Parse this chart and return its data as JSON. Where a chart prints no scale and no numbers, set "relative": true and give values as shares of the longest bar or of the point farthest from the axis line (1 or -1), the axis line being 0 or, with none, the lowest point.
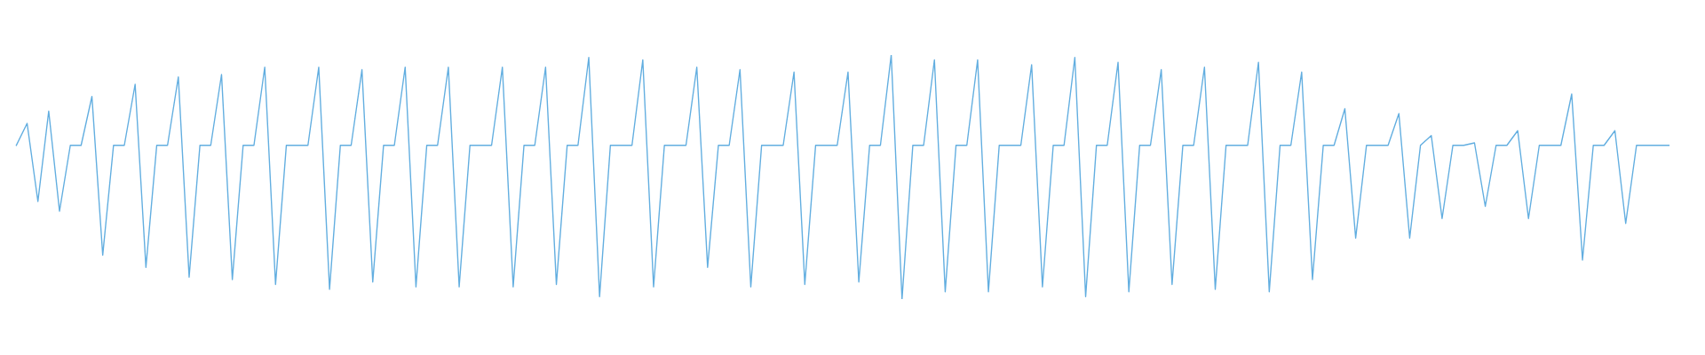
{
  "chart_data": {
    "type": "line",
    "relative": true,
    "color": "#62aee0",
    "categories": [
      null,
      null,
      null,
      null,
      null,
      null,
      null,
      null,
      null,
      null,
      null,
      null,
      null,
      null,
      null,
      null,
      null,
      null,
      null,
      null,
      null,
      null,
      null,
      null,
      null,
      null,
      null,
      null,
      null,
      null,
      null,
      null,
      null,
      null,
      null,
      null,
      null,
      null,
      null,
      null,
      null,
      null,
      null,
      null,
      null,
      null,
      null,
      null,
      null,
      null,
      null,
      null,
      null,
      null,
      null,
      null,
      null,
      null,
      null,
      null,
      null,
      null,
      null,
      null,
      null,
      null,
      null,
      null,
      null,
      null,
      null,
      null,
      null,
      null,
      null,
      null,
      null,
      null,
      null,
      null,
      null,
      null,
      null,
      null,
      null,
      null,
      null,
      null,
      null,
      null,
      null,
      null,
      null,
      null,
      null,
      null,
      null,
      null,
      null,
      null,
      null,
      null,
      null,
      null,
      null,
      null,
      null,
      null,
      null,
      null,
      null,
      null,
      null,
      null,
      null,
      null,
      null,
      null,
      null,
      null,
      null,
      null,
      null,
      null,
      null,
      null,
      null,
      null,
      null,
      null,
      null,
      null,
      null,
      null,
      null,
      null,
      null,
      null,
      null,
      null,
      null,
      null,
      null,
      null,
      null,
      null,
      null,
      null,
      null,
      null,
      null,
      null,
      null,
      null
    ],
    "values": [
      0.63,
      0.72,
      0.4,
      0.77,
      0.36,
      0.63,
      0.63,
      0.83,
      0.18,
      0.63,
      0.63,
      0.88,
      0.13,
      0.63,
      0.63,
      0.91,
      0.09,
      0.63,
      0.63,
      0.92,
      0.08,
      0.63,
      0.63,
      0.95,
      0.06,
      0.63,
      0.63,
      0.63,
      0.95,
      0.04,
      0.63,
      0.63,
      0.94,
      0.07,
      0.63,
      0.63,
      0.95,
      0.05,
      0.63,
      0.63,
      0.95,
      0.05,
      0.63,
      0.63,
      0.63,
      0.95,
      0.05,
      0.63,
      0.63,
      0.95,
      0.06,
      0.63,
      0.63,
      0.99,
      0.01,
      0.63,
      0.63,
      0.63,
      0.98,
      0.05,
      0.63,
      0.63,
      0.63,
      0.95,
      0.13,
      0.63,
      0.63,
      0.94,
      0.05,
      0.63,
      0.63,
      0.63,
      0.93,
      0.06,
      0.63,
      0.63,
      0.63,
      0.93,
      0.07,
      0.63,
      0.63,
      1.0,
      0.0,
      0.63,
      0.63,
      0.98,
      0.03,
      0.63,
      0.63,
      0.98,
      0.03,
      0.63,
      0.63,
      0.63,
      0.96,
      0.05,
      0.63,
      0.63,
      0.99,
      0.01,
      0.63,
      0.63,
      0.97,
      0.03,
      0.63,
      0.63,
      0.94,
      0.06,
      0.63,
      0.63,
      0.95,
      0.04,
      0.63,
      0.63,
      0.63,
      0.97,
      0.03,
      0.63,
      0.63,
      0.93,
      0.08,
      0.63,
      0.63,
      0.78,
      0.25,
      0.63,
      0.63,
      0.63,
      0.76,
      0.25,
      0.63,
      0.67,
      0.33,
      0.63,
      0.63,
      0.64,
      0.38,
      0.63,
      0.63,
      0.69,
      0.33,
      0.63,
      0.63,
      0.63,
      0.84,
      0.16,
      0.63,
      0.63,
      0.69,
      0.31,
      0.63,
      0.63,
      0.63,
      0.63
    ]
  }
}
